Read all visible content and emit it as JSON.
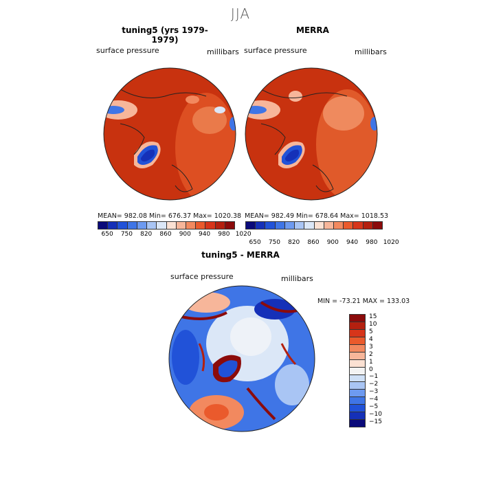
{
  "main_title": "JJA",
  "panels": [
    {
      "title": "tuning5 (yrs 1979-1979)",
      "variable": "surface pressure",
      "units": "millibars",
      "stats": "MEAN= 982.08   Min= 676.37   Max= 1020.38"
    },
    {
      "title": "MERRA",
      "variable": "surface pressure",
      "units": "millibars",
      "stats": "MEAN= 982.49   Min= 678.64   Max= 1018.53"
    }
  ],
  "colorbar_top": {
    "colors": [
      "#0a0a7a",
      "#1530b8",
      "#2152d8",
      "#3f75e6",
      "#6d9af0",
      "#a9c5f4",
      "#dbe7f7",
      "#fbe1d3",
      "#f7b69a",
      "#f2895f",
      "#ea5a2c",
      "#d7351a",
      "#b4200f",
      "#8b0b0b"
    ],
    "labels": [
      "650",
      "750",
      "820",
      "860",
      "900",
      "940",
      "980",
      "1020"
    ]
  },
  "diff_panel": {
    "title": "tuning5 - MERRA",
    "variable": "surface pressure",
    "units": "millibars",
    "stats": "MIN = -73.21  MAX = 133.03"
  },
  "colorbar_diff": {
    "colors": [
      "#8b0b0b",
      "#b4200f",
      "#d7351a",
      "#ea5a2c",
      "#f2895f",
      "#f7b69a",
      "#fbe1d3",
      "#f3f3f3",
      "#cfe0f6",
      "#a9c5f4",
      "#6d9af0",
      "#3f75e6",
      "#2152d8",
      "#1530b8",
      "#0a0a7a"
    ],
    "labels": [
      "15",
      "10",
      "5",
      "4",
      "3",
      "2",
      "1",
      "0",
      "−1",
      "−2",
      "−3",
      "−4",
      "−5",
      "−10",
      "−15"
    ]
  }
}
